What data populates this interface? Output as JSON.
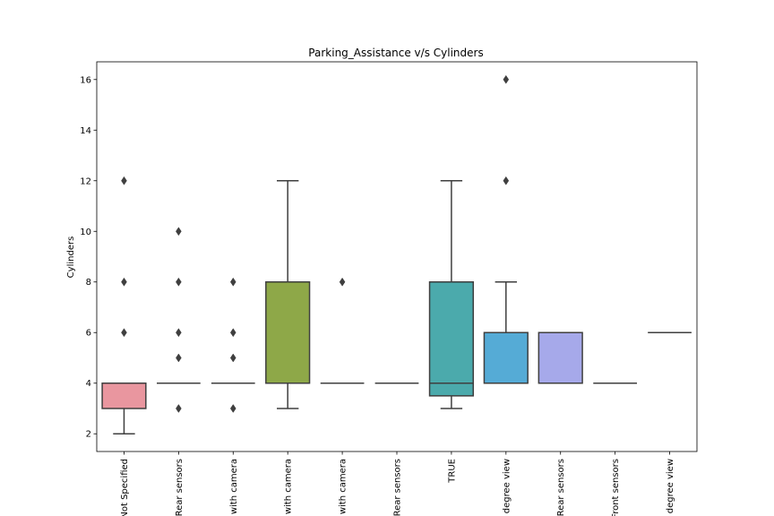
{
  "chart_data": {
    "type": "box",
    "title": "Parking_Assistance v/s Cylinders",
    "xlabel": "",
    "ylabel": "Cylinders",
    "ylim": [
      1.3,
      16.7
    ],
    "yticks": [
      2,
      4,
      6,
      8,
      10,
      12,
      14,
      16
    ],
    "grid": false,
    "categories": [
      "Not Specified",
      "Rear sensors",
      "with camera",
      "with camera",
      "with camera",
      "Rear sensors",
      "TRUE",
      "degree view",
      "Rear sensors",
      "Front sensors",
      "degree view"
    ],
    "boxes": [
      {
        "q1": 3,
        "median": 4,
        "q3": 4,
        "whislo": 2,
        "whishi": 4,
        "fliers": [
          6,
          8,
          12
        ],
        "color": "#e9969f"
      },
      {
        "q1": 4,
        "median": 4,
        "q3": 4,
        "whislo": 4,
        "whishi": 4,
        "fliers": [
          3,
          5,
          6,
          8,
          10
        ],
        "color": "#d9a45f"
      },
      {
        "q1": 4,
        "median": 4,
        "q3": 4,
        "whislo": 4,
        "whishi": 4,
        "fliers": [
          3,
          5,
          6,
          8
        ],
        "color": "#b8ac56"
      },
      {
        "q1": 4,
        "median": 4,
        "q3": 8,
        "whislo": 3,
        "whishi": 12,
        "fliers": [],
        "color": "#8ea848"
      },
      {
        "q1": 4,
        "median": 4,
        "q3": 4,
        "whislo": 4,
        "whishi": 4,
        "fliers": [
          8
        ],
        "color": "#58b27a"
      },
      {
        "q1": 4,
        "median": 4,
        "q3": 4,
        "whislo": 4,
        "whishi": 4,
        "fliers": [],
        "color": "#55ae9c"
      },
      {
        "q1": 3.5,
        "median": 4,
        "q3": 8,
        "whislo": 3,
        "whishi": 12,
        "fliers": [],
        "color": "#4baaac"
      },
      {
        "q1": 4,
        "median": 4,
        "q3": 6,
        "whislo": 4,
        "whishi": 8,
        "fliers": [
          12,
          16
        ],
        "color": "#55abd6"
      },
      {
        "q1": 4,
        "median": 6,
        "q3": 6,
        "whislo": 4,
        "whishi": 6,
        "fliers": [],
        "color": "#a6a9ea"
      },
      {
        "q1": 4,
        "median": 4,
        "q3": 4,
        "whislo": 4,
        "whishi": 4,
        "fliers": [],
        "color": "#c896e6"
      },
      {
        "q1": 6,
        "median": 6,
        "q3": 6,
        "whislo": 6,
        "whishi": 6,
        "fliers": [],
        "color": "#e68fcf"
      }
    ]
  }
}
